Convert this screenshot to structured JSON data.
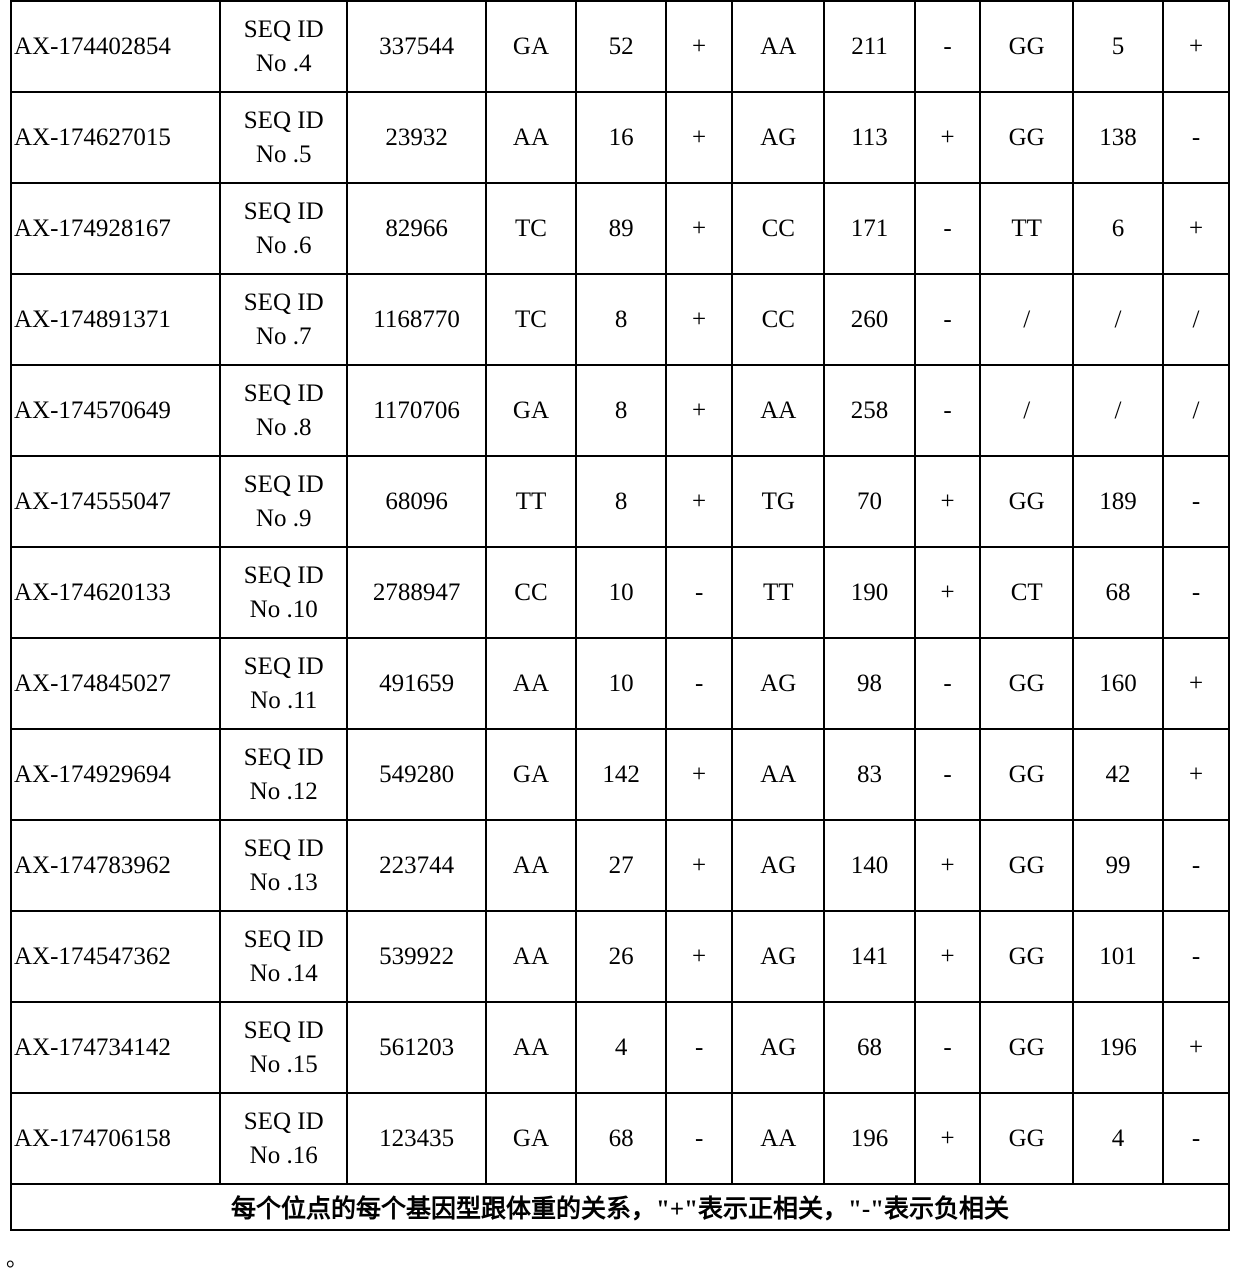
{
  "footer_text": "每个位点的每个基因型跟体重的关系，\"+\"表示正相关，\"-\"表示负相关",
  "period": "。",
  "rows": [
    {
      "id": "AX-174402854",
      "seq1": "SEQ ID",
      "seq2": "No .4",
      "num": "337544",
      "g1": "GA",
      "n1": "52",
      "s1": "+",
      "g2": "AA",
      "n2": "211",
      "s2": "-",
      "g3": "GG",
      "n3": "5",
      "s3": "+"
    },
    {
      "id": "AX-174627015",
      "seq1": "SEQ ID",
      "seq2": "No .5",
      "num": "23932",
      "g1": "AA",
      "n1": "16",
      "s1": "+",
      "g2": "AG",
      "n2": "113",
      "s2": "+",
      "g3": "GG",
      "n3": "138",
      "s3": "-"
    },
    {
      "id": "AX-174928167",
      "seq1": "SEQ ID",
      "seq2": "No .6",
      "num": "82966",
      "g1": "TC",
      "n1": "89",
      "s1": "+",
      "g2": "CC",
      "n2": "171",
      "s2": "-",
      "g3": "TT",
      "n3": "6",
      "s3": "+"
    },
    {
      "id": "AX-174891371",
      "seq1": "SEQ ID",
      "seq2": "No .7",
      "num": "1168770",
      "g1": "TC",
      "n1": "8",
      "s1": "+",
      "g2": "CC",
      "n2": "260",
      "s2": "-",
      "g3": "/",
      "n3": "/",
      "s3": "/"
    },
    {
      "id": "AX-174570649",
      "seq1": "SEQ ID",
      "seq2": "No .8",
      "num": "1170706",
      "g1": "GA",
      "n1": "8",
      "s1": "+",
      "g2": "AA",
      "n2": "258",
      "s2": "-",
      "g3": "/",
      "n3": "/",
      "s3": "/"
    },
    {
      "id": "AX-174555047",
      "seq1": "SEQ ID",
      "seq2": "No .9",
      "num": "68096",
      "g1": "TT",
      "n1": "8",
      "s1": "+",
      "g2": "TG",
      "n2": "70",
      "s2": "+",
      "g3": "GG",
      "n3": "189",
      "s3": "-"
    },
    {
      "id": "AX-174620133",
      "seq1": "SEQ ID",
      "seq2": "No .10",
      "num": "2788947",
      "g1": "CC",
      "n1": "10",
      "s1": "-",
      "g2": "TT",
      "n2": "190",
      "s2": "+",
      "g3": "CT",
      "n3": "68",
      "s3": "-"
    },
    {
      "id": "AX-174845027",
      "seq1": "SEQ ID",
      "seq2": "No .11",
      "num": "491659",
      "g1": "AA",
      "n1": "10",
      "s1": "-",
      "g2": "AG",
      "n2": "98",
      "s2": "-",
      "g3": "GG",
      "n3": "160",
      "s3": "+"
    },
    {
      "id": "AX-174929694",
      "seq1": "SEQ ID",
      "seq2": "No .12",
      "num": "549280",
      "g1": "GA",
      "n1": "142",
      "s1": "+",
      "g2": "AA",
      "n2": "83",
      "s2": "-",
      "g3": "GG",
      "n3": "42",
      "s3": "+"
    },
    {
      "id": "AX-174783962",
      "seq1": "SEQ ID",
      "seq2": "No .13",
      "num": "223744",
      "g1": "AA",
      "n1": "27",
      "s1": "+",
      "g2": "AG",
      "n2": "140",
      "s2": "+",
      "g3": "GG",
      "n3": "99",
      "s3": "-"
    },
    {
      "id": "AX-174547362",
      "seq1": "SEQ ID",
      "seq2": "No .14",
      "num": "539922",
      "g1": "AA",
      "n1": "26",
      "s1": "+",
      "g2": "AG",
      "n2": "141",
      "s2": "+",
      "g3": "GG",
      "n3": "101",
      "s3": "-"
    },
    {
      "id": "AX-174734142",
      "seq1": "SEQ ID",
      "seq2": "No .15",
      "num": "561203",
      "g1": "AA",
      "n1": "4",
      "s1": "-",
      "g2": "AG",
      "n2": "68",
      "s2": "-",
      "g3": "GG",
      "n3": "196",
      "s3": "+"
    },
    {
      "id": "AX-174706158",
      "seq1": "SEQ ID",
      "seq2": "No .16",
      "num": "123435",
      "g1": "GA",
      "n1": "68",
      "s1": "-",
      "g2": "AA",
      "n2": "196",
      "s2": "+",
      "g3": "GG",
      "n3": "4",
      "s3": "-"
    }
  ]
}
